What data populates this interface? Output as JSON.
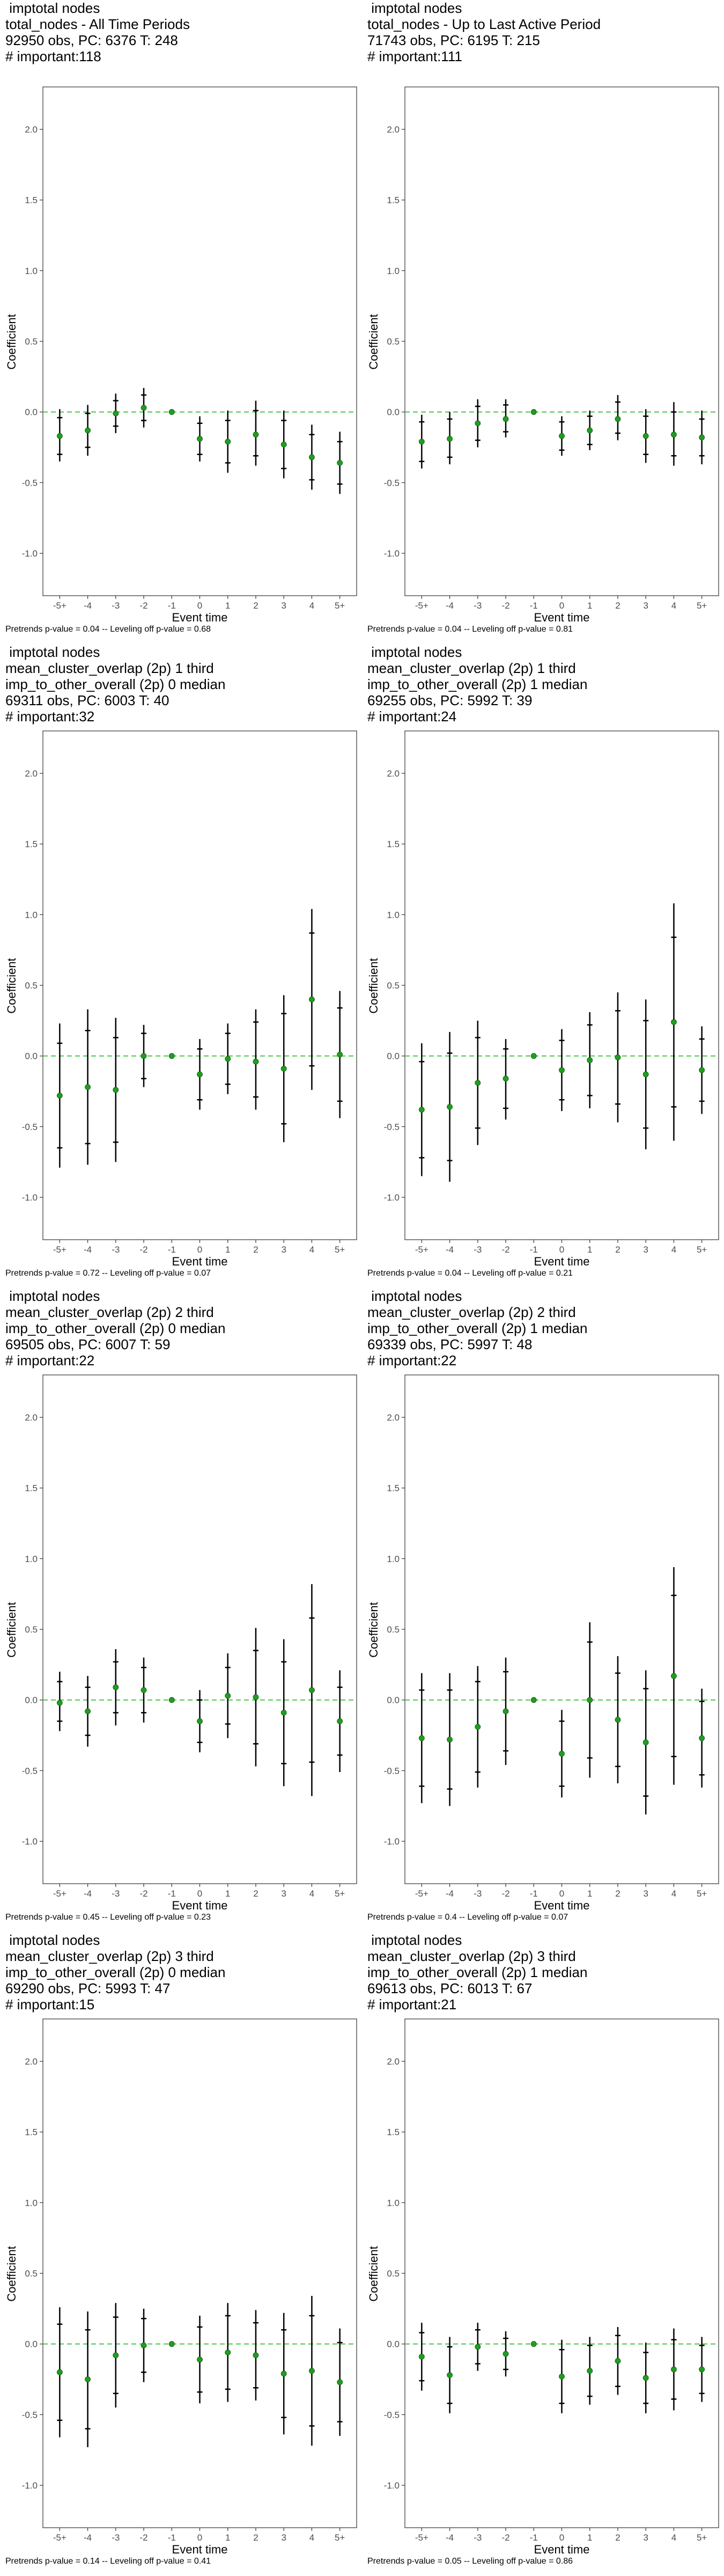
{
  "chart_data": [
    {
      "type": "scatter",
      "title_lines": [
        "imptotal nodes",
        "total_nodes - All Time Periods",
        "92950 obs, PC: 6376 T: 248",
        "# important:118"
      ],
      "xlabel": "Event time",
      "ylabel": "Coefficient",
      "categories": [
        "-5+",
        "-4",
        "-3",
        "-2",
        "-1",
        "0",
        "1",
        "2",
        "3",
        "4",
        "5+"
      ],
      "ylim": [
        -1.3,
        2.3
      ],
      "yticks": [
        -1.0,
        -0.5,
        0.0,
        0.5,
        1.0,
        1.5,
        2.0
      ],
      "estimates": [
        -0.17,
        -0.13,
        -0.01,
        0.03,
        0,
        -0.19,
        -0.21,
        -0.16,
        -0.23,
        -0.32,
        -0.36
      ],
      "ci_outer": [
        [
          -0.35,
          0.02
        ],
        [
          -0.31,
          0.05
        ],
        [
          -0.15,
          0.13
        ],
        [
          -0.11,
          0.17
        ],
        [
          0,
          0
        ],
        [
          -0.35,
          -0.03
        ],
        [
          -0.43,
          0.01
        ],
        [
          -0.38,
          0.08
        ],
        [
          -0.47,
          0.01
        ],
        [
          -0.55,
          -0.09
        ],
        [
          -0.58,
          -0.14
        ]
      ],
      "ci_inner": [
        [
          -0.3,
          -0.04
        ],
        [
          -0.25,
          -0.01
        ],
        [
          -0.1,
          0.08
        ],
        [
          -0.06,
          0.12
        ],
        [
          0,
          0
        ],
        [
          -0.3,
          -0.08
        ],
        [
          -0.36,
          -0.06
        ],
        [
          -0.31,
          0.01
        ],
        [
          -0.4,
          -0.06
        ],
        [
          -0.48,
          -0.16
        ],
        [
          -0.51,
          -0.21
        ]
      ],
      "footnote": "Pretrends p-value = 0.04 -- Leveling off p-value = 0.68"
    },
    {
      "type": "scatter",
      "title_lines": [
        "imptotal nodes",
        "total_nodes - Up to Last Active Period",
        "71743 obs, PC: 6195 T: 215",
        "# important:111"
      ],
      "xlabel": "Event time",
      "ylabel": "Coefficient",
      "categories": [
        "-5+",
        "-4",
        "-3",
        "-2",
        "-1",
        "0",
        "1",
        "2",
        "3",
        "4",
        "5+"
      ],
      "ylim": [
        -1.3,
        2.3
      ],
      "yticks": [
        -1.0,
        -0.5,
        0.0,
        0.5,
        1.0,
        1.5,
        2.0
      ],
      "estimates": [
        -0.21,
        -0.19,
        -0.08,
        -0.05,
        0,
        -0.17,
        -0.13,
        -0.05,
        -0.17,
        -0.16,
        -0.18
      ],
      "ci_outer": [
        [
          -0.4,
          -0.02
        ],
        [
          -0.37,
          0.0
        ],
        [
          -0.25,
          0.09
        ],
        [
          -0.18,
          0.09
        ],
        [
          0,
          0
        ],
        [
          -0.31,
          -0.03
        ],
        [
          -0.27,
          0.01
        ],
        [
          -0.2,
          0.12
        ],
        [
          -0.36,
          0.02
        ],
        [
          -0.38,
          0.07
        ],
        [
          -0.37,
          0.01
        ]
      ],
      "ci_inner": [
        [
          -0.35,
          -0.07
        ],
        [
          -0.32,
          -0.05
        ],
        [
          -0.2,
          0.04
        ],
        [
          -0.14,
          0.05
        ],
        [
          0,
          0
        ],
        [
          -0.27,
          -0.07
        ],
        [
          -0.23,
          -0.03
        ],
        [
          -0.15,
          0.07
        ],
        [
          -0.3,
          -0.03
        ],
        [
          -0.31,
          0.0
        ],
        [
          -0.31,
          -0.05
        ]
      ],
      "footnote": "Pretrends p-value = 0.04 -- Leveling off p-value = 0.81"
    },
    {
      "type": "scatter",
      "title_lines": [
        "imptotal nodes",
        "mean_cluster_overlap (2p) 1 third",
        "imp_to_other_overall (2p) 0 median",
        "69311 obs, PC: 6003 T: 40",
        "# important:32"
      ],
      "xlabel": "Event time",
      "ylabel": "Coefficient",
      "categories": [
        "-5+",
        "-4",
        "-3",
        "-2",
        "-1",
        "0",
        "1",
        "2",
        "3",
        "4",
        "5+"
      ],
      "ylim": [
        -1.3,
        2.3
      ],
      "yticks": [
        -1.0,
        -0.5,
        0.0,
        0.5,
        1.0,
        1.5,
        2.0
      ],
      "estimates": [
        -0.28,
        -0.22,
        -0.24,
        0.0,
        0,
        -0.13,
        -0.02,
        -0.04,
        -0.09,
        0.4,
        0.01
      ],
      "ci_outer": [
        [
          -0.79,
          0.23
        ],
        [
          -0.77,
          0.33
        ],
        [
          -0.75,
          0.27
        ],
        [
          -0.22,
          0.22
        ],
        [
          0,
          0
        ],
        [
          -0.38,
          0.12
        ],
        [
          -0.27,
          0.23
        ],
        [
          -0.38,
          0.33
        ],
        [
          -0.61,
          0.43
        ],
        [
          -0.24,
          1.04
        ],
        [
          -0.44,
          0.46
        ]
      ],
      "ci_inner": [
        [
          -0.65,
          0.09
        ],
        [
          -0.62,
          0.18
        ],
        [
          -0.61,
          0.13
        ],
        [
          -0.16,
          0.16
        ],
        [
          0,
          0
        ],
        [
          -0.31,
          0.05
        ],
        [
          -0.2,
          0.16
        ],
        [
          -0.29,
          0.24
        ],
        [
          -0.48,
          0.3
        ],
        [
          -0.07,
          0.87
        ],
        [
          -0.32,
          0.34
        ]
      ],
      "footnote": "Pretrends p-value = 0.72 -- Leveling off p-value = 0.07"
    },
    {
      "type": "scatter",
      "title_lines": [
        "imptotal nodes",
        "mean_cluster_overlap (2p) 1 third",
        "imp_to_other_overall (2p) 1 median",
        "69255 obs, PC: 5992 T: 39",
        "# important:24"
      ],
      "xlabel": "Event time",
      "ylabel": "Coefficient",
      "categories": [
        "-5+",
        "-4",
        "-3",
        "-2",
        "-1",
        "0",
        "1",
        "2",
        "3",
        "4",
        "5+"
      ],
      "ylim": [
        -1.3,
        2.3
      ],
      "yticks": [
        -1.0,
        -0.5,
        0.0,
        0.5,
        1.0,
        1.5,
        2.0
      ],
      "estimates": [
        -0.38,
        -0.36,
        -0.19,
        -0.16,
        0,
        -0.1,
        -0.03,
        -0.01,
        -0.13,
        0.24,
        -0.1
      ],
      "ci_outer": [
        [
          -0.85,
          0.09
        ],
        [
          -0.89,
          0.17
        ],
        [
          -0.63,
          0.25
        ],
        [
          -0.45,
          0.12
        ],
        [
          0,
          0
        ],
        [
          -0.39,
          0.19
        ],
        [
          -0.37,
          0.31
        ],
        [
          -0.47,
          0.45
        ],
        [
          -0.66,
          0.4
        ],
        [
          -0.6,
          1.08
        ],
        [
          -0.41,
          0.21
        ]
      ],
      "ci_inner": [
        [
          -0.72,
          -0.04
        ],
        [
          -0.74,
          0.02
        ],
        [
          -0.51,
          0.13
        ],
        [
          -0.37,
          0.05
        ],
        [
          0,
          0
        ],
        [
          -0.31,
          0.11
        ],
        [
          -0.28,
          0.22
        ],
        [
          -0.34,
          0.32
        ],
        [
          -0.51,
          0.25
        ],
        [
          -0.36,
          0.84
        ],
        [
          -0.32,
          0.12
        ]
      ],
      "footnote": "Pretrends p-value = 0.04 -- Leveling off p-value = 0.21"
    },
    {
      "type": "scatter",
      "title_lines": [
        "imptotal nodes",
        "mean_cluster_overlap (2p) 2 third",
        "imp_to_other_overall (2p) 0 median",
        "69505 obs, PC: 6007 T: 59",
        "# important:22"
      ],
      "xlabel": "Event time",
      "ylabel": "Coefficient",
      "categories": [
        "-5+",
        "-4",
        "-3",
        "-2",
        "-1",
        "0",
        "1",
        "2",
        "3",
        "4",
        "5+"
      ],
      "ylim": [
        -1.3,
        2.3
      ],
      "yticks": [
        -1.0,
        -0.5,
        0.0,
        0.5,
        1.0,
        1.5,
        2.0
      ],
      "estimates": [
        -0.02,
        -0.08,
        0.09,
        0.07,
        0,
        -0.15,
        0.03,
        0.02,
        -0.09,
        0.07,
        -0.15
      ],
      "ci_outer": [
        [
          -0.22,
          0.2
        ],
        [
          -0.33,
          0.17
        ],
        [
          -0.18,
          0.36
        ],
        [
          -0.16,
          0.3
        ],
        [
          0,
          0
        ],
        [
          -0.37,
          0.07
        ],
        [
          -0.27,
          0.33
        ],
        [
          -0.47,
          0.51
        ],
        [
          -0.61,
          0.43
        ],
        [
          -0.68,
          0.82
        ],
        [
          -0.51,
          0.21
        ]
      ],
      "ci_inner": [
        [
          -0.15,
          0.13
        ],
        [
          -0.25,
          0.09
        ],
        [
          -0.09,
          0.27
        ],
        [
          -0.09,
          0.23
        ],
        [
          0,
          0
        ],
        [
          -0.3,
          0.0
        ],
        [
          -0.17,
          0.23
        ],
        [
          -0.31,
          0.35
        ],
        [
          -0.45,
          0.27
        ],
        [
          -0.44,
          0.58
        ],
        [
          -0.39,
          0.09
        ]
      ],
      "footnote": "Pretrends p-value = 0.45 -- Leveling off p-value = 0.23"
    },
    {
      "type": "scatter",
      "title_lines": [
        "imptotal nodes",
        "mean_cluster_overlap (2p) 2 third",
        "imp_to_other_overall (2p) 1 median",
        "69339 obs, PC: 5997 T: 48",
        "# important:22"
      ],
      "xlabel": "Event time",
      "ylabel": "Coefficient",
      "categories": [
        "-5+",
        "-4",
        "-3",
        "-2",
        "-1",
        "0",
        "1",
        "2",
        "3",
        "4",
        "5+"
      ],
      "ylim": [
        -1.3,
        2.3
      ],
      "yticks": [
        -1.0,
        -0.5,
        0.0,
        0.5,
        1.0,
        1.5,
        2.0
      ],
      "estimates": [
        -0.27,
        -0.28,
        -0.19,
        -0.08,
        0,
        -0.38,
        0.0,
        -0.14,
        -0.3,
        0.17,
        -0.27
      ],
      "ci_outer": [
        [
          -0.73,
          0.19
        ],
        [
          -0.75,
          0.19
        ],
        [
          -0.62,
          0.24
        ],
        [
          -0.46,
          0.3
        ],
        [
          0,
          0
        ],
        [
          -0.69,
          -0.07
        ],
        [
          -0.55,
          0.55
        ],
        [
          -0.59,
          0.31
        ],
        [
          -0.81,
          0.21
        ],
        [
          -0.6,
          0.94
        ],
        [
          -0.62,
          0.08
        ]
      ],
      "ci_inner": [
        [
          -0.61,
          0.07
        ],
        [
          -0.63,
          0.07
        ],
        [
          -0.51,
          0.13
        ],
        [
          -0.36,
          0.2
        ],
        [
          0,
          0
        ],
        [
          -0.61,
          -0.15
        ],
        [
          -0.41,
          0.41
        ],
        [
          -0.47,
          0.19
        ],
        [
          -0.68,
          0.08
        ],
        [
          -0.4,
          0.74
        ],
        [
          -0.53,
          -0.01
        ]
      ],
      "footnote": "Pretrends p-value = 0.4 -- Leveling off p-value = 0.07"
    },
    {
      "type": "scatter",
      "title_lines": [
        "imptotal nodes",
        "mean_cluster_overlap (2p) 3 third",
        "imp_to_other_overall (2p) 0 median",
        "69290 obs, PC: 5993 T: 47",
        "# important:15"
      ],
      "xlabel": "Event time",
      "ylabel": "Coefficient",
      "categories": [
        "-5+",
        "-4",
        "-3",
        "-2",
        "-1",
        "0",
        "1",
        "2",
        "3",
        "4",
        "5+"
      ],
      "ylim": [
        -1.3,
        2.3
      ],
      "yticks": [
        -1.0,
        -0.5,
        0.0,
        0.5,
        1.0,
        1.5,
        2.0
      ],
      "estimates": [
        -0.2,
        -0.25,
        -0.08,
        -0.01,
        0,
        -0.11,
        -0.06,
        -0.08,
        -0.21,
        -0.19,
        -0.27
      ],
      "ci_outer": [
        [
          -0.66,
          0.26
        ],
        [
          -0.73,
          0.23
        ],
        [
          -0.45,
          0.29
        ],
        [
          -0.27,
          0.25
        ],
        [
          0,
          0
        ],
        [
          -0.42,
          0.2
        ],
        [
          -0.41,
          0.29
        ],
        [
          -0.4,
          0.24
        ],
        [
          -0.64,
          0.22
        ],
        [
          -0.72,
          0.34
        ],
        [
          -0.65,
          0.11
        ]
      ],
      "ci_inner": [
        [
          -0.54,
          0.14
        ],
        [
          -0.6,
          0.1
        ],
        [
          -0.35,
          0.19
        ],
        [
          -0.2,
          0.18
        ],
        [
          0,
          0
        ],
        [
          -0.34,
          0.12
        ],
        [
          -0.32,
          0.2
        ],
        [
          -0.31,
          0.15
        ],
        [
          -0.52,
          0.1
        ],
        [
          -0.58,
          0.2
        ],
        [
          -0.55,
          0.01
        ]
      ],
      "footnote": "Pretrends p-value = 0.14 -- Leveling off p-value = 0.41"
    },
    {
      "type": "scatter",
      "title_lines": [
        "imptotal nodes",
        "mean_cluster_overlap (2p) 3 third",
        "imp_to_other_overall (2p) 1 median",
        "69613 obs, PC: 6013 T: 67",
        "# important:21"
      ],
      "xlabel": "Event time",
      "ylabel": "Coefficient",
      "categories": [
        "-5+",
        "-4",
        "-3",
        "-2",
        "-1",
        "0",
        "1",
        "2",
        "3",
        "4",
        "5+"
      ],
      "ylim": [
        -1.3,
        2.3
      ],
      "yticks": [
        -1.0,
        -0.5,
        0.0,
        0.5,
        1.0,
        1.5,
        2.0
      ],
      "estimates": [
        -0.09,
        -0.22,
        -0.02,
        -0.07,
        0,
        -0.23,
        -0.19,
        -0.12,
        -0.24,
        -0.18,
        -0.18
      ],
      "ci_outer": [
        [
          -0.33,
          0.15
        ],
        [
          -0.49,
          0.05
        ],
        [
          -0.19,
          0.15
        ],
        [
          -0.23,
          0.09
        ],
        [
          0,
          0
        ],
        [
          -0.49,
          0.03
        ],
        [
          -0.43,
          0.05
        ],
        [
          -0.36,
          0.12
        ],
        [
          -0.49,
          0.01
        ],
        [
          -0.47,
          0.11
        ],
        [
          -0.41,
          0.05
        ]
      ],
      "ci_inner": [
        [
          -0.26,
          0.08
        ],
        [
          -0.42,
          -0.02
        ],
        [
          -0.14,
          0.1
        ],
        [
          -0.18,
          0.04
        ],
        [
          0,
          0
        ],
        [
          -0.42,
          -0.04
        ],
        [
          -0.37,
          -0.01
        ],
        [
          -0.3,
          0.06
        ],
        [
          -0.42,
          -0.06
        ],
        [
          -0.39,
          0.03
        ],
        [
          -0.35,
          -0.01
        ]
      ],
      "footnote": "Pretrends p-value = 0.05 -- Leveling off p-value = 0.86"
    }
  ],
  "colors": {
    "point": "#1f9e1f",
    "zero_line": "#46c846",
    "error_bar": "#000000",
    "frame": "#333333",
    "tick_text": "#4d4d4d"
  }
}
